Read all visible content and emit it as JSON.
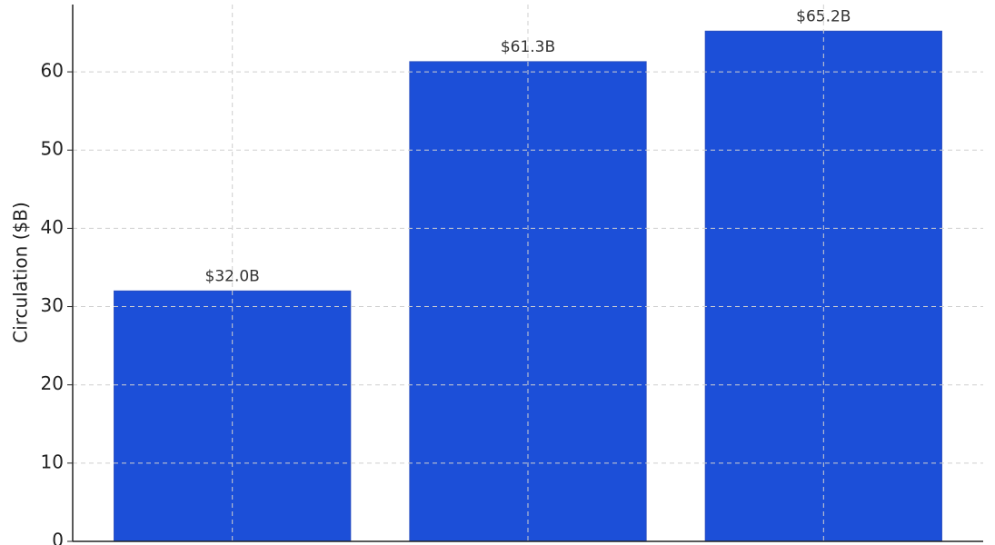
{
  "chart_data": {
    "type": "bar",
    "y_label": "Circulation ($B)",
    "categories": [
      null,
      null,
      null
    ],
    "values": [
      32.0,
      61.3,
      65.2
    ],
    "value_labels": [
      "$32.0B",
      "$61.3B",
      "$65.2B"
    ],
    "color": "#1c4fd8",
    "ylim": [
      0,
      68.6
    ],
    "yticks": [
      0,
      10,
      20,
      30,
      40,
      50,
      60
    ],
    "grid": true
  }
}
